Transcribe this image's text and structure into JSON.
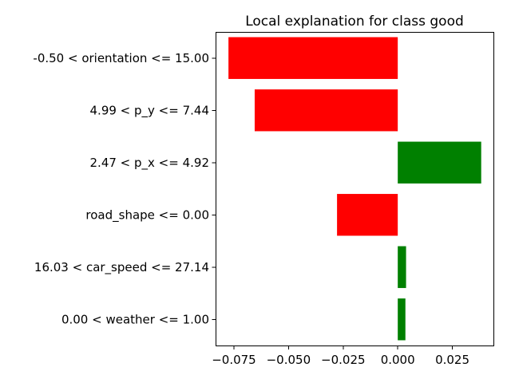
{
  "chart_data": {
    "type": "bar",
    "orientation": "horizontal",
    "title": "Local explanation for class good",
    "xlabel": "",
    "ylabel": "",
    "categories": [
      "-0.50 < orientation <= 15.00",
      "4.99 < p_y <= 7.44",
      "2.47 < p_x <= 4.92",
      "road_shape <= 0.00",
      "16.03 < car_speed <= 27.14",
      "0.00 < weather <= 1.00"
    ],
    "values": [
      -0.0775,
      -0.0655,
      0.0382,
      -0.0278,
      0.0038,
      0.0035
    ],
    "xlim": [
      -0.0834,
      0.0438
    ],
    "xticks": [
      -0.075,
      -0.05,
      -0.025,
      0.0,
      0.025
    ],
    "xtick_labels": [
      "−0.075",
      "−0.050",
      "−0.025",
      "0.000",
      "0.025"
    ],
    "colors": {
      "positive": "#008000",
      "negative": "#ff0000"
    },
    "grid": false,
    "legend": "none"
  }
}
